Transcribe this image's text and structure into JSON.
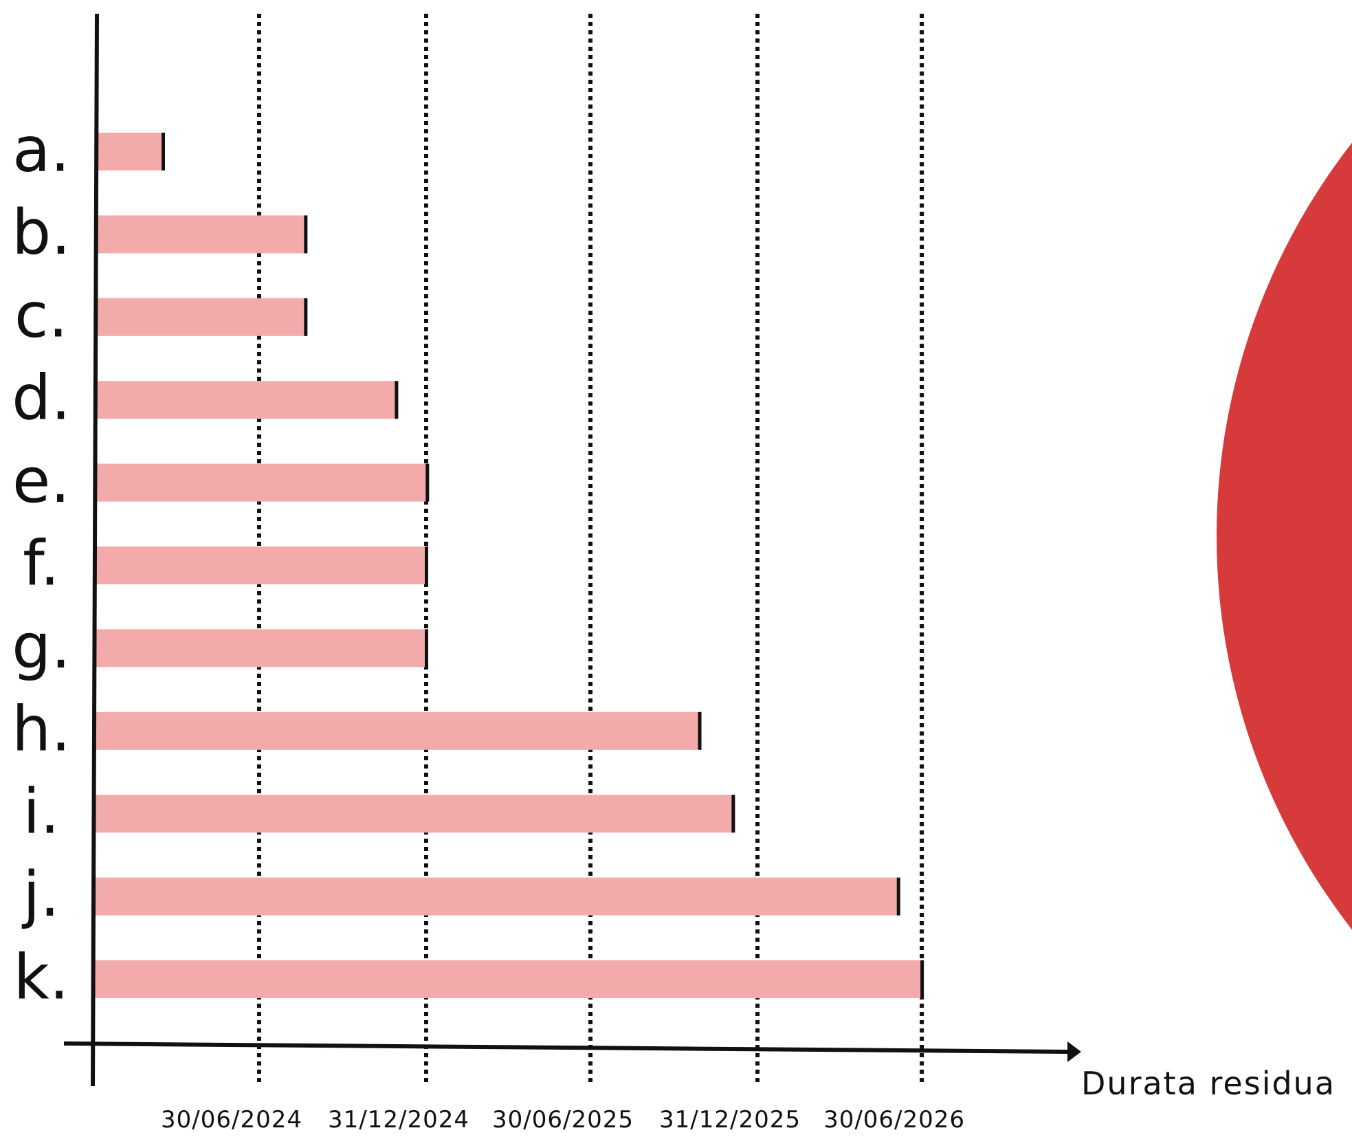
{
  "chart_data": {
    "type": "bar",
    "orientation": "horizontal",
    "title": "",
    "xlabel": "Durata residua",
    "ylabel": "",
    "categories": [
      "a.",
      "b.",
      "c.",
      "d.",
      "e.",
      "f.",
      "g.",
      "h.",
      "i.",
      "j.",
      "k."
    ],
    "values": [
      "2024-03-16",
      "2024-08-20",
      "2024-08-20",
      "2024-11-28",
      "2025-01-01",
      "2024-12-31",
      "2024-12-31",
      "2025-10-28",
      "2025-12-04",
      "2026-06-04",
      "2026-06-30"
    ],
    "x_ticks": [
      "30/06/2024",
      "31/12/2024",
      "30/06/2025",
      "31/12/2025",
      "30/06/2026"
    ],
    "grid": "vertical dotted lines at tick dates",
    "colors": {
      "bar": "#f3aaab",
      "bar_end_marker": "#111111",
      "axis": "#111111",
      "decoration_circle": "#d63a3a"
    }
  }
}
